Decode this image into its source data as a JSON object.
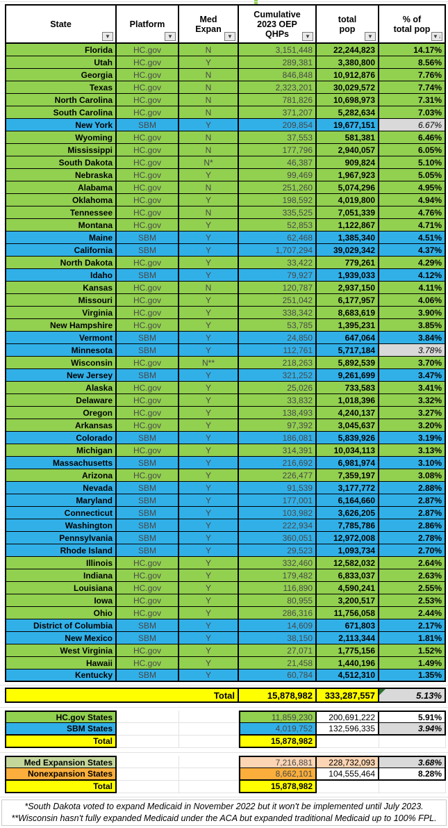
{
  "colors": {
    "hcgov_green": "#92D050",
    "sbm_blue": "#31B0E8",
    "total_yellow": "#FFFF00",
    "med_expansion_olive": "#C4D79B",
    "nonexpansion_orange": "#FBAE3B",
    "expansion_peach": "#FCD5B4",
    "noted_gray": "#D9D9D9",
    "note_corner_green": "#2e7031"
  },
  "icons": {
    "filter_dropdown": "▼",
    "sort_descending": "▼↓"
  },
  "header": {
    "columns": [
      {
        "label": "State"
      },
      {
        "label": "Platform"
      },
      {
        "label": "Med\nExpan"
      },
      {
        "label": "Cumulative\n2023 OEP\nQHPs"
      },
      {
        "label": "total\npop"
      },
      {
        "label": "% of\ntotal pop"
      }
    ]
  },
  "rows": [
    {
      "state": "Florida",
      "platform": "HC.gov",
      "med_expan": "N",
      "qhps": "3,151,448",
      "pop": "22,244,823",
      "pct": "14.17%",
      "color": "green",
      "pct_gray": false
    },
    {
      "state": "Utah",
      "platform": "HC.gov",
      "med_expan": "Y",
      "qhps": "289,381",
      "pop": "3,380,800",
      "pct": "8.56%",
      "color": "green",
      "pct_gray": false
    },
    {
      "state": "Georgia",
      "platform": "HC.gov",
      "med_expan": "N",
      "qhps": "846,848",
      "pop": "10,912,876",
      "pct": "7.76%",
      "color": "green",
      "pct_gray": false
    },
    {
      "state": "Texas",
      "platform": "HC.gov",
      "med_expan": "N",
      "qhps": "2,323,201",
      "pop": "30,029,572",
      "pct": "7.74%",
      "color": "green",
      "pct_gray": false
    },
    {
      "state": "North Carolina",
      "platform": "HC.gov",
      "med_expan": "N",
      "qhps": "781,826",
      "pop": "10,698,973",
      "pct": "7.31%",
      "color": "green",
      "pct_gray": false
    },
    {
      "state": "South Carolina",
      "platform": "HC.gov",
      "med_expan": "N",
      "qhps": "371,207",
      "pop": "5,282,634",
      "pct": "7.03%",
      "color": "green",
      "pct_gray": false
    },
    {
      "state": "New York",
      "platform": "SBM",
      "med_expan": "Y",
      "qhps": "209,854",
      "pop": "19,677,151",
      "pct": "6.67%",
      "color": "blue",
      "pct_gray": true
    },
    {
      "state": "Wyoming",
      "platform": "HC.gov",
      "med_expan": "N",
      "qhps": "37,553",
      "pop": "581,381",
      "pct": "6.46%",
      "color": "green",
      "pct_gray": false
    },
    {
      "state": "Mississippi",
      "platform": "HC.gov",
      "med_expan": "N",
      "qhps": "177,796",
      "pop": "2,940,057",
      "pct": "6.05%",
      "color": "green",
      "pct_gray": false
    },
    {
      "state": "South Dakota",
      "platform": "HC.gov",
      "med_expan": "N*",
      "qhps": "46,387",
      "pop": "909,824",
      "pct": "5.10%",
      "color": "green",
      "pct_gray": false
    },
    {
      "state": "Nebraska",
      "platform": "HC.gov",
      "med_expan": "Y",
      "qhps": "99,469",
      "pop": "1,967,923",
      "pct": "5.05%",
      "color": "green",
      "pct_gray": false
    },
    {
      "state": "Alabama",
      "platform": "HC.gov",
      "med_expan": "N",
      "qhps": "251,260",
      "pop": "5,074,296",
      "pct": "4.95%",
      "color": "green",
      "pct_gray": false
    },
    {
      "state": "Oklahoma",
      "platform": "HC.gov",
      "med_expan": "Y",
      "qhps": "198,592",
      "pop": "4,019,800",
      "pct": "4.94%",
      "color": "green",
      "pct_gray": false
    },
    {
      "state": "Tennessee",
      "platform": "HC.gov",
      "med_expan": "N",
      "qhps": "335,525",
      "pop": "7,051,339",
      "pct": "4.76%",
      "color": "green",
      "pct_gray": false
    },
    {
      "state": "Montana",
      "platform": "HC.gov",
      "med_expan": "Y",
      "qhps": "52,853",
      "pop": "1,122,867",
      "pct": "4.71%",
      "color": "green",
      "pct_gray": false
    },
    {
      "state": "Maine",
      "platform": "SBM",
      "med_expan": "Y",
      "qhps": "62,468",
      "pop": "1,385,340",
      "pct": "4.51%",
      "color": "blue",
      "pct_gray": false
    },
    {
      "state": "California",
      "platform": "SBM",
      "med_expan": "Y",
      "qhps": "1,707,294",
      "pop": "39,029,342",
      "pct": "4.37%",
      "color": "blue",
      "pct_gray": false
    },
    {
      "state": "North Dakota",
      "platform": "HC.gov",
      "med_expan": "Y",
      "qhps": "33,422",
      "pop": "779,261",
      "pct": "4.29%",
      "color": "green",
      "pct_gray": false
    },
    {
      "state": "Idaho",
      "platform": "SBM",
      "med_expan": "Y",
      "qhps": "79,927",
      "pop": "1,939,033",
      "pct": "4.12%",
      "color": "blue",
      "pct_gray": false
    },
    {
      "state": "Kansas",
      "platform": "HC.gov",
      "med_expan": "N",
      "qhps": "120,787",
      "pop": "2,937,150",
      "pct": "4.11%",
      "color": "green",
      "pct_gray": false
    },
    {
      "state": "Missouri",
      "platform": "HC.gov",
      "med_expan": "Y",
      "qhps": "251,042",
      "pop": "6,177,957",
      "pct": "4.06%",
      "color": "green",
      "pct_gray": false
    },
    {
      "state": "Virginia",
      "platform": "HC.gov",
      "med_expan": "Y",
      "qhps": "338,342",
      "pop": "8,683,619",
      "pct": "3.90%",
      "color": "green",
      "pct_gray": false
    },
    {
      "state": "New Hampshire",
      "platform": "HC.gov",
      "med_expan": "Y",
      "qhps": "53,785",
      "pop": "1,395,231",
      "pct": "3.85%",
      "color": "green",
      "pct_gray": false
    },
    {
      "state": "Vermont",
      "platform": "SBM",
      "med_expan": "Y",
      "qhps": "24,850",
      "pop": "647,064",
      "pct": "3.84%",
      "color": "blue",
      "pct_gray": false
    },
    {
      "state": "Minnesota",
      "platform": "SBM",
      "med_expan": "Y",
      "qhps": "112,761",
      "pop": "5,717,184",
      "pct": "3.78%",
      "color": "blue",
      "pct_gray": true
    },
    {
      "state": "Wisconsin",
      "platform": "HC.gov",
      "med_expan": "N**",
      "qhps": "218,263",
      "pop": "5,892,539",
      "pct": "3.70%",
      "color": "green",
      "pct_gray": false
    },
    {
      "state": "New Jersey",
      "platform": "SBM",
      "med_expan": "Y",
      "qhps": "321,252",
      "pop": "9,261,699",
      "pct": "3.47%",
      "color": "blue",
      "pct_gray": false
    },
    {
      "state": "Alaska",
      "platform": "HC.gov",
      "med_expan": "Y",
      "qhps": "25,026",
      "pop": "733,583",
      "pct": "3.41%",
      "color": "green",
      "pct_gray": false
    },
    {
      "state": "Delaware",
      "platform": "HC.gov",
      "med_expan": "Y",
      "qhps": "33,832",
      "pop": "1,018,396",
      "pct": "3.32%",
      "color": "green",
      "pct_gray": false
    },
    {
      "state": "Oregon",
      "platform": "HC.gov",
      "med_expan": "Y",
      "qhps": "138,493",
      "pop": "4,240,137",
      "pct": "3.27%",
      "color": "green",
      "pct_gray": false
    },
    {
      "state": "Arkansas",
      "platform": "HC.gov",
      "med_expan": "Y",
      "qhps": "97,392",
      "pop": "3,045,637",
      "pct": "3.20%",
      "color": "green",
      "pct_gray": false
    },
    {
      "state": "Colorado",
      "platform": "SBM",
      "med_expan": "Y",
      "qhps": "186,081",
      "pop": "5,839,926",
      "pct": "3.19%",
      "color": "blue",
      "pct_gray": false
    },
    {
      "state": "Michigan",
      "platform": "HC.gov",
      "med_expan": "Y",
      "qhps": "314,391",
      "pop": "10,034,113",
      "pct": "3.13%",
      "color": "green",
      "pct_gray": false
    },
    {
      "state": "Massachusetts",
      "platform": "SBM",
      "med_expan": "Y",
      "qhps": "216,692",
      "pop": "6,981,974",
      "pct": "3.10%",
      "color": "blue",
      "pct_gray": false
    },
    {
      "state": "Arizona",
      "platform": "HC.gov",
      "med_expan": "Y",
      "qhps": "226,477",
      "pop": "7,359,197",
      "pct": "3.08%",
      "color": "green",
      "pct_gray": false
    },
    {
      "state": "Nevada",
      "platform": "SBM",
      "med_expan": "Y",
      "qhps": "91,539",
      "pop": "3,177,772",
      "pct": "2.88%",
      "color": "blue",
      "pct_gray": false
    },
    {
      "state": "Maryland",
      "platform": "SBM",
      "med_expan": "Y",
      "qhps": "177,001",
      "pop": "6,164,660",
      "pct": "2.87%",
      "color": "blue",
      "pct_gray": false
    },
    {
      "state": "Connecticut",
      "platform": "SBM",
      "med_expan": "Y",
      "qhps": "103,982",
      "pop": "3,626,205",
      "pct": "2.87%",
      "color": "blue",
      "pct_gray": false
    },
    {
      "state": "Washington",
      "platform": "SBM",
      "med_expan": "Y",
      "qhps": "222,934",
      "pop": "7,785,786",
      "pct": "2.86%",
      "color": "blue",
      "pct_gray": false
    },
    {
      "state": "Pennsylvania",
      "platform": "SBM",
      "med_expan": "Y",
      "qhps": "360,051",
      "pop": "12,972,008",
      "pct": "2.78%",
      "color": "blue",
      "pct_gray": false
    },
    {
      "state": "Rhode Island",
      "platform": "SBM",
      "med_expan": "Y",
      "qhps": "29,523",
      "pop": "1,093,734",
      "pct": "2.70%",
      "color": "blue",
      "pct_gray": false
    },
    {
      "state": "Illinois",
      "platform": "HC.gov",
      "med_expan": "Y",
      "qhps": "332,460",
      "pop": "12,582,032",
      "pct": "2.64%",
      "color": "green",
      "pct_gray": false
    },
    {
      "state": "Indiana",
      "platform": "HC.gov",
      "med_expan": "Y",
      "qhps": "179,482",
      "pop": "6,833,037",
      "pct": "2.63%",
      "color": "green",
      "pct_gray": false
    },
    {
      "state": "Louisiana",
      "platform": "HC.gov",
      "med_expan": "Y",
      "qhps": "116,890",
      "pop": "4,590,241",
      "pct": "2.55%",
      "color": "green",
      "pct_gray": false
    },
    {
      "state": "Iowa",
      "platform": "HC.gov",
      "med_expan": "Y",
      "qhps": "80,955",
      "pop": "3,200,517",
      "pct": "2.53%",
      "color": "green",
      "pct_gray": false
    },
    {
      "state": "Ohio",
      "platform": "HC.gov",
      "med_expan": "Y",
      "qhps": "286,316",
      "pop": "11,756,058",
      "pct": "2.44%",
      "color": "green",
      "pct_gray": false
    },
    {
      "state": "District of Columbia",
      "platform": "SBM",
      "med_expan": "Y",
      "qhps": "14,609",
      "pop": "671,803",
      "pct": "2.17%",
      "color": "blue",
      "pct_gray": false
    },
    {
      "state": "New Mexico",
      "platform": "SBM",
      "med_expan": "Y",
      "qhps": "38,150",
      "pop": "2,113,344",
      "pct": "1.81%",
      "color": "blue",
      "pct_gray": false
    },
    {
      "state": "West Virginia",
      "platform": "HC.gov",
      "med_expan": "Y",
      "qhps": "27,071",
      "pop": "1,775,156",
      "pct": "1.52%",
      "color": "green",
      "pct_gray": false
    },
    {
      "state": "Hawaii",
      "platform": "HC.gov",
      "med_expan": "Y",
      "qhps": "21,458",
      "pop": "1,440,196",
      "pct": "1.49%",
      "color": "green",
      "pct_gray": false
    },
    {
      "state": "Kentucky",
      "platform": "SBM",
      "med_expan": "Y",
      "qhps": "60,784",
      "pop": "4,512,310",
      "pct": "1.35%",
      "color": "blue",
      "pct_gray": false
    }
  ],
  "grand_total": {
    "label": "Total",
    "qhps": "15,878,982",
    "pop": "333,287,557",
    "pct": "5.13%"
  },
  "platform_summary": {
    "hcgov": {
      "label": "HC.gov States",
      "qhps": "11,859,230",
      "pop": "200,691,222",
      "pct": "5.91%"
    },
    "sbm": {
      "label": "SBM States",
      "qhps": "4,019,752",
      "pop": "132,596,335",
      "pct": "3.94%"
    },
    "total": {
      "label": "Total",
      "qhps": "15,878,982"
    }
  },
  "expansion_summary": {
    "expansion": {
      "label": "Med Expansion States",
      "qhps": "7,216,881",
      "pop": "228,732,093",
      "pct": "3.68%"
    },
    "nonexpansion": {
      "label": "Nonexpansion States",
      "qhps": "8,662,101",
      "pop": "104,555,464",
      "pct": "8.28%"
    },
    "total": {
      "label": "Total",
      "qhps": "15,878,982"
    }
  },
  "footnotes": [
    "*South Dakota voted to expand Medicaid in November 2022 but it won't be implemented until July 2023.",
    "**Wisconsin hasn't fully expanded Medicaid under the ACA but expanded traditional Medicaid up to 100% FPL."
  ]
}
